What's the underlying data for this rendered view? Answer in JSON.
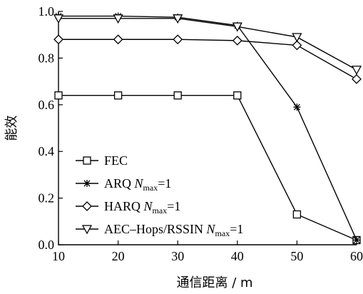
{
  "chart_data": {
    "type": "line",
    "xlabel": "通信距离 / m",
    "ylabel": "能效",
    "x": [
      10,
      20,
      30,
      40,
      50,
      60
    ],
    "xlim": [
      10,
      60
    ],
    "ylim": [
      0,
      1.0
    ],
    "xticks": [
      "10",
      "20",
      "30",
      "40",
      "50",
      "60"
    ],
    "yticks": [
      "0.0",
      "0.2",
      "0.4",
      "0.6",
      "0.8",
      "1.0"
    ],
    "grid": false,
    "legend_position": "lower-left",
    "series": [
      {
        "name": "FEC",
        "subscript": "",
        "suffix": "",
        "marker": "square",
        "values": [
          0.64,
          0.64,
          0.64,
          0.64,
          0.13,
          0.02
        ]
      },
      {
        "name": "ARQ N",
        "subscript": "max",
        "suffix": "=1",
        "marker": "star",
        "values": [
          0.98,
          0.98,
          0.975,
          0.94,
          0.59,
          0.02
        ]
      },
      {
        "name": "HARQ N",
        "subscript": "max",
        "suffix": "=1",
        "marker": "diamond",
        "values": [
          0.88,
          0.88,
          0.88,
          0.875,
          0.855,
          0.71
        ]
      },
      {
        "name": "AEC–Hops/RSSIN N",
        "subscript": "max",
        "suffix": "=1",
        "marker": "triangle-down",
        "values": [
          0.97,
          0.97,
          0.97,
          0.935,
          0.89,
          0.75
        ]
      }
    ]
  }
}
